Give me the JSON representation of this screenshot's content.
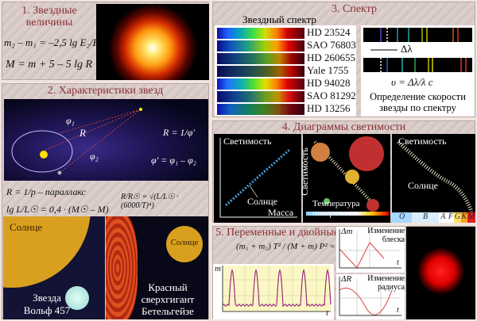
{
  "panel1": {
    "title_line1": "1. Звездные",
    "title_line2": "величины",
    "formula1": "m₂ – m₁ = –2,5 lg E₂/E₁",
    "formula2": "M = m + 5 – 5 lg R"
  },
  "panel2": {
    "title": "2. Характеристики звезд",
    "phi1": "φ₁",
    "phi2": "φ₂",
    "R": "R",
    "formula_R": "R = 1/φ′",
    "formula_phi": "φ′ = φ₁ – φ₂",
    "formula_parallax": "R = 1/p – параллакс",
    "formula_lum": "lg L/L☉ = 0,4 · (M☉ – M)",
    "formula_radius": "R/R☉ = √(L/L☉ · (6000/T)⁴)",
    "sun_label_left": "Солнце",
    "star_left": "Звезда Вольф 457",
    "sun_label_right": "Солнце",
    "star_right": "Красный сверхгигант Бетельгейзе"
  },
  "panel3": {
    "title": "3. Спектр",
    "subtitle": "Звездный спектр",
    "stars": [
      "HD 23524",
      "SAO 76803",
      "HD 260655",
      "Yale 1755",
      "HD 94028",
      "SAO 81292",
      "HD 13256"
    ],
    "delta_lambda": "Δλ",
    "formula": "υ = Δλ/λ c",
    "caption": "Определение скорости звезды по спектру"
  },
  "panel4": {
    "title": "4. Диаграммы светимости",
    "d1_y": "Светимость",
    "d1_x": "Масса",
    "d1_sun": "Солнце",
    "d2_y": "Светимость",
    "d2_x": "Температура поверхности",
    "d3_y": "Светимость",
    "d3_sun": "Солнце",
    "spectral_classes": [
      "O",
      "B",
      "A",
      "F",
      "G",
      "K",
      "M"
    ]
  },
  "panel5": {
    "title": "5. Переменные и двойные",
    "formula": "(m₁ + m₂) T² / (M + m) P² = A³/a³",
    "chart_y": "m",
    "chart_x": "t",
    "c2_y": "Δm",
    "c2_label": "Изменение блеска",
    "c2_x": "t",
    "c3_y": "ΔR",
    "c3_label": "Изменение радиуса",
    "c3_x": "t"
  }
}
